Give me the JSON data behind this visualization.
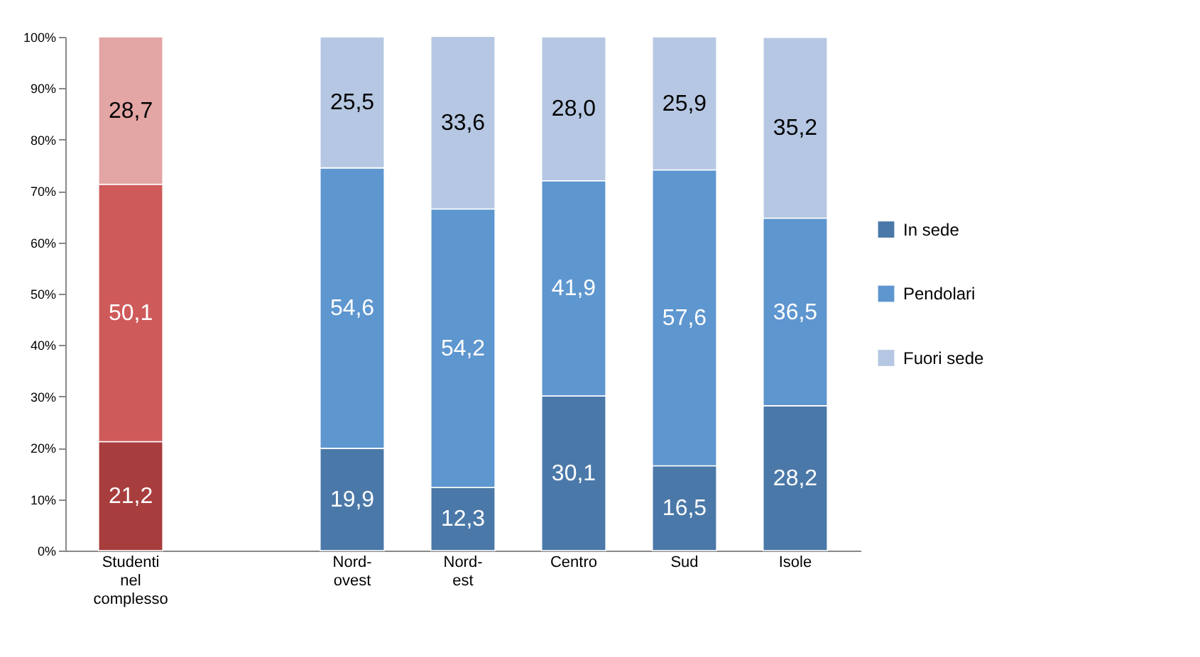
{
  "chart_data": {
    "type": "bar",
    "stacked": true,
    "categories": [
      "Studenti nel complesso",
      null,
      "Nord-ovest",
      "Nord-est",
      "Centro",
      "Sud",
      "Isole"
    ],
    "series": [
      {
        "name": "In sede",
        "color": "#4a78a8",
        "colors": [
          "#a83d3d",
          null,
          "#4a78a8",
          "#4a78a8",
          "#4a78a8",
          "#4a78a8",
          "#4a78a8"
        ],
        "values": [
          21.2,
          null,
          19.9,
          12.3,
          30.1,
          16.5,
          28.2
        ],
        "value_labels": [
          "21,2",
          null,
          "19,9",
          "12,3",
          "30,1",
          "16,5",
          "28,2"
        ]
      },
      {
        "name": "Pendolari",
        "color": "#5e96cf",
        "colors": [
          "#cf5a5a",
          null,
          "#5e96cf",
          "#5e96cf",
          "#5e96cf",
          "#5e96cf",
          "#5e96cf"
        ],
        "values": [
          50.1,
          null,
          54.6,
          54.2,
          41.9,
          57.6,
          36.5
        ],
        "value_labels": [
          "50,1",
          null,
          "54,6",
          "54,2",
          "41,9",
          "57,6",
          "36,5"
        ]
      },
      {
        "name": "Fuori sede",
        "color": "#b5c7e2",
        "colors": [
          "#e4a5a5",
          null,
          "#b5c7e2",
          "#b5c7e2",
          "#b5c7e2",
          "#b5c7e2",
          "#b5c7e2"
        ],
        "values": [
          28.7,
          null,
          25.5,
          33.6,
          28.0,
          25.9,
          35.2
        ],
        "value_labels": [
          "28,7",
          null,
          "25,5",
          "33,6",
          "28,0",
          "25,9",
          "35,2"
        ]
      }
    ],
    "ylim": [
      0,
      100
    ],
    "yticks": [
      {
        "value": 0,
        "label": "0%"
      },
      {
        "value": 10,
        "label": "10%"
      },
      {
        "value": 20,
        "label": "20%"
      },
      {
        "value": 30,
        "label": "30%"
      },
      {
        "value": 40,
        "label": "40%"
      },
      {
        "value": 50,
        "label": "50%"
      },
      {
        "value": 60,
        "label": "60%"
      },
      {
        "value": 70,
        "label": "70%"
      },
      {
        "value": 80,
        "label": "80%"
      },
      {
        "value": 90,
        "label": "90%"
      },
      {
        "value": 100,
        "label": "100%"
      }
    ],
    "legend": "right",
    "grid": false
  }
}
